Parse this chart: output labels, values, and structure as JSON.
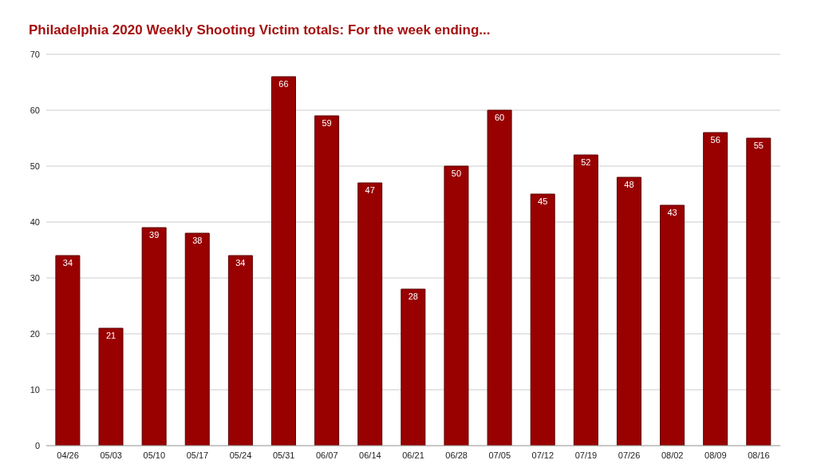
{
  "chart_data": {
    "type": "bar",
    "title": "Philadelphia 2020 Weekly Shooting Victim totals: For the week ending...",
    "categories": [
      "04/26",
      "05/03",
      "05/10",
      "05/17",
      "05/24",
      "05/31",
      "06/07",
      "06/14",
      "06/21",
      "06/28",
      "07/05",
      "07/12",
      "07/19",
      "07/26",
      "08/02",
      "08/09",
      "08/16"
    ],
    "values": [
      34,
      21,
      39,
      38,
      34,
      66,
      59,
      47,
      28,
      50,
      60,
      45,
      52,
      48,
      43,
      56,
      55
    ],
    "color": "#990000",
    "ylim": [
      0,
      70
    ],
    "yticks": [
      0,
      10,
      20,
      30,
      40,
      50,
      60,
      70
    ],
    "grid": "y",
    "data_labels": true
  }
}
